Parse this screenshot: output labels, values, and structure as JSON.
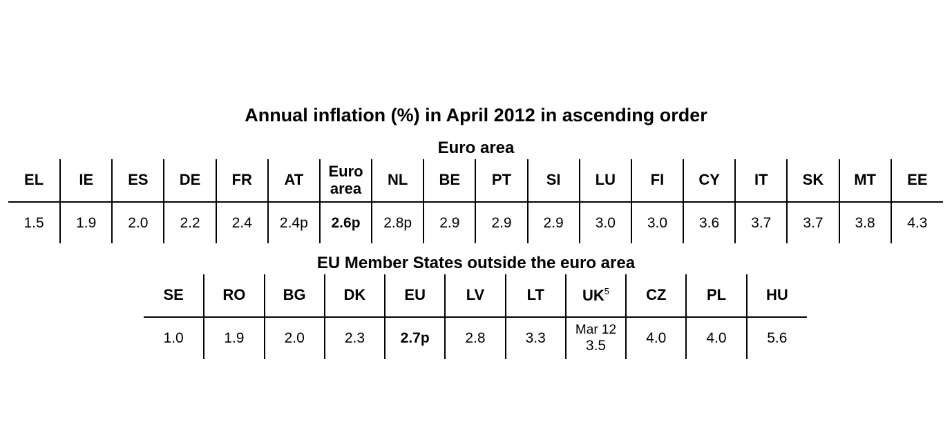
{
  "title": "Annual inflation (%) in April 2012 in ascending order",
  "euro_area": {
    "title": "Euro area",
    "headers": [
      "EL",
      "IE",
      "ES",
      "DE",
      "FR",
      "AT",
      "Euro area",
      "NL",
      "BE",
      "PT",
      "SI",
      "LU",
      "FI",
      "CY",
      "IT",
      "SK",
      "MT",
      "EE"
    ],
    "values": [
      "1.5",
      "1.9",
      "2.0",
      "2.2",
      "2.4",
      "2.4p",
      "2.6p",
      "2.8p",
      "2.9",
      "2.9",
      "2.9",
      "3.0",
      "3.0",
      "3.6",
      "3.7",
      "3.7",
      "3.8",
      "4.3"
    ],
    "bold_column": 6
  },
  "outside_euro_area": {
    "title": "EU Member States outside the euro area",
    "headers": [
      "SE",
      "RO",
      "BG",
      "DK",
      "EU",
      "LV",
      "LT",
      {
        "label": "UK",
        "sup": "5"
      },
      "CZ",
      "PL",
      "HU"
    ],
    "values": [
      "1.0",
      "1.9",
      "2.0",
      "2.3",
      "2.7p",
      "2.8",
      "3.3",
      {
        "note": "Mar 12",
        "text": "3.5"
      },
      "4.0",
      "4.0",
      "5.6"
    ],
    "bold_column": 4
  }
}
